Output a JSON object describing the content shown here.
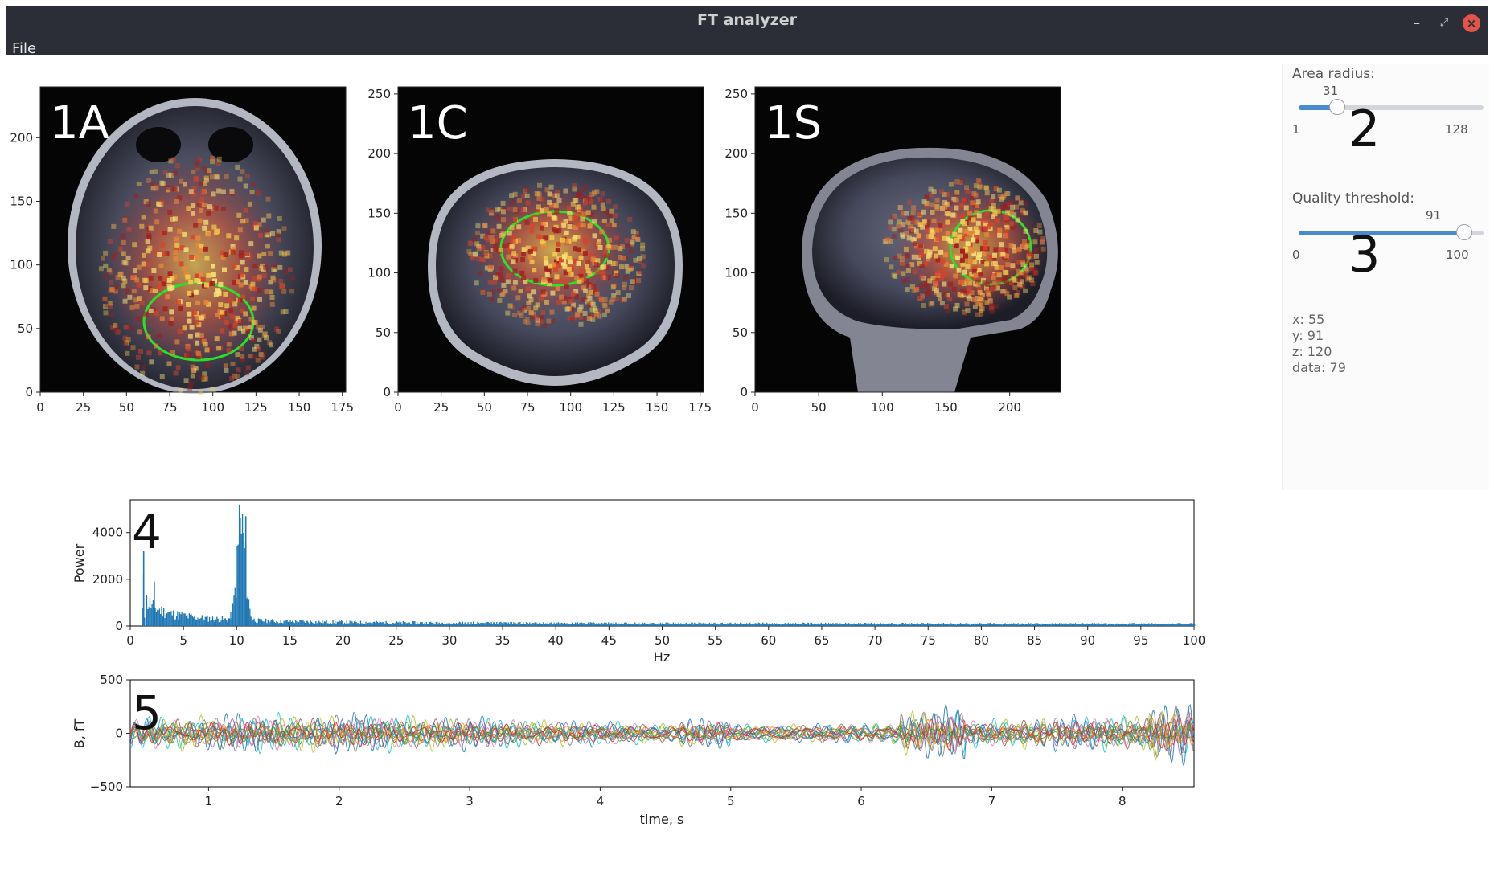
{
  "window": {
    "title": "FT analyzer",
    "menu_file": "File"
  },
  "panels": {
    "axial": {
      "label": "1A",
      "x_ticks": [
        "0",
        "25",
        "50",
        "75",
        "100",
        "125",
        "150",
        "175"
      ],
      "y_ticks": [
        "0",
        "50",
        "100",
        "150",
        "200"
      ]
    },
    "coronal": {
      "label": "1C",
      "x_ticks": [
        "0",
        "25",
        "50",
        "75",
        "100",
        "125",
        "150",
        "175"
      ],
      "y_ticks": [
        "0",
        "50",
        "100",
        "150",
        "200",
        "250"
      ]
    },
    "sagittal": {
      "label": "1S",
      "x_ticks": [
        "0",
        "50",
        "100",
        "150",
        "200"
      ],
      "y_ticks": [
        "0",
        "50",
        "100",
        "150",
        "200",
        "250"
      ]
    }
  },
  "controls": {
    "area_radius": {
      "label": "Area radius:",
      "value": "31",
      "min": "1",
      "max": "128",
      "marker": "2"
    },
    "quality_threshold": {
      "label": "Quality threshold:",
      "value": "91",
      "min": "0",
      "max": "100",
      "marker": "3"
    },
    "readout": {
      "x": "x: 55",
      "y": "y: 91",
      "z": "z: 120",
      "data": "data: 79"
    }
  },
  "chart_data": [
    {
      "type": "bar",
      "marker": "4",
      "xlabel": "Hz",
      "ylabel": "Power",
      "xlim": [
        0,
        100
      ],
      "ylim": [
        0,
        5400
      ],
      "x_ticks": [
        "0",
        "5",
        "10",
        "15",
        "20",
        "25",
        "30",
        "35",
        "40",
        "45",
        "50",
        "55",
        "60",
        "65",
        "70",
        "75",
        "80",
        "85",
        "90",
        "95",
        "100"
      ],
      "y_ticks": [
        "0",
        "2000",
        "4000"
      ],
      "peaks": [
        {
          "hz": 1.2,
          "power": 3200
        },
        {
          "hz": 2.2,
          "power": 1900
        },
        {
          "hz": 10.2,
          "power": 5200
        },
        {
          "hz": 10.8,
          "power": 4700
        }
      ]
    },
    {
      "type": "line",
      "marker": "5",
      "xlabel": "time, s",
      "ylabel": "B, fT",
      "xlim": [
        0.4,
        8.55
      ],
      "ylim": [
        -500,
        500
      ],
      "x_ticks": [
        "1",
        "2",
        "3",
        "4",
        "5",
        "6",
        "7",
        "8"
      ],
      "y_ticks": [
        "500",
        "0",
        "−500"
      ]
    }
  ]
}
